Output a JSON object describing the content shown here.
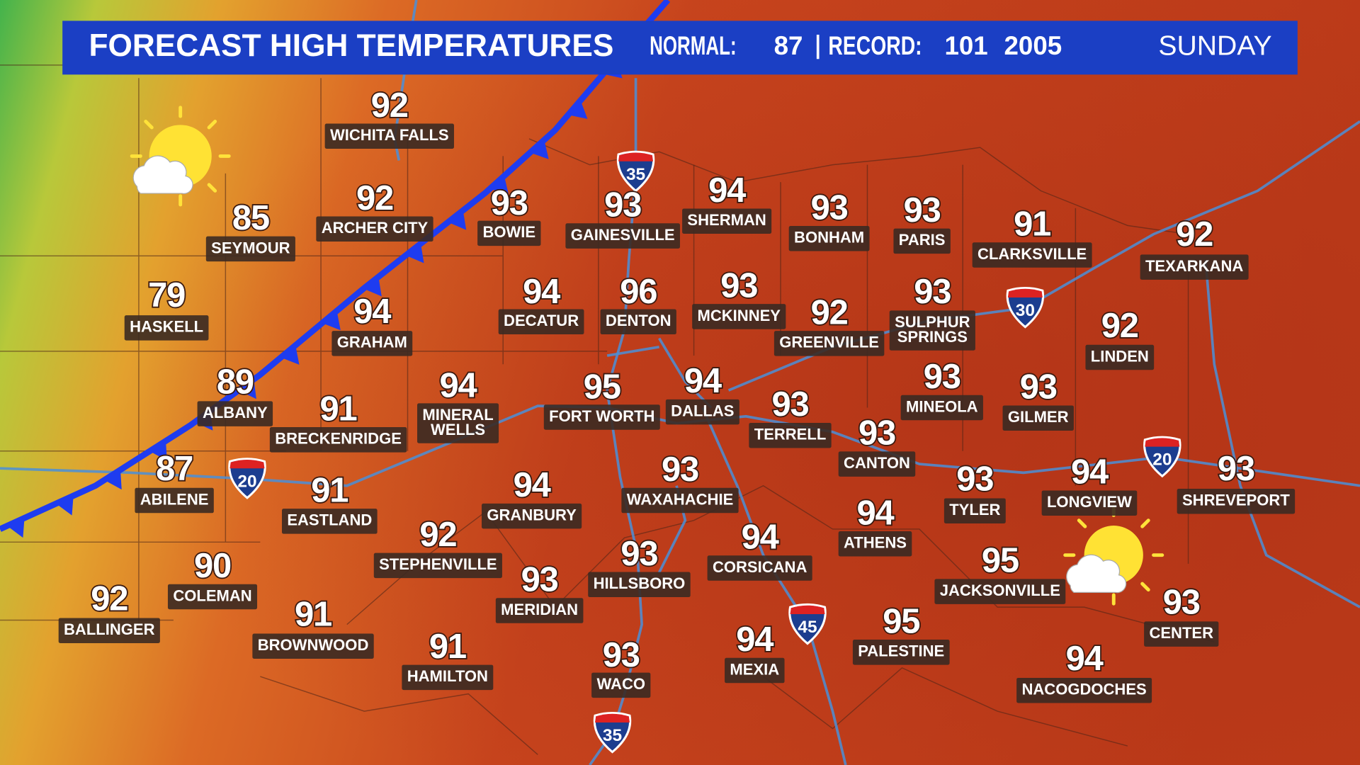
{
  "header": {
    "title": "FORECAST HIGH TEMPERATURES",
    "normal_label": "NORMAL:",
    "normal": 87,
    "record_label": "RECORD:",
    "record": 101,
    "record_year": 2005,
    "day": "SUNDAY"
  },
  "cities": [
    {
      "name": "WICHITA FALLS",
      "high": 92
    },
    {
      "name": "SEYMOUR",
      "high": 85
    },
    {
      "name": "ARCHER CITY",
      "high": 92
    },
    {
      "name": "BOWIE",
      "high": 93
    },
    {
      "name": "GAINESVILLE",
      "high": 93
    },
    {
      "name": "SHERMAN",
      "high": 94
    },
    {
      "name": "BONHAM",
      "high": 93
    },
    {
      "name": "PARIS",
      "high": 93
    },
    {
      "name": "CLARKSVILLE",
      "high": 91
    },
    {
      "name": "TEXARKANA",
      "high": 92
    },
    {
      "name": "HASKELL",
      "high": 79
    },
    {
      "name": "GRAHAM",
      "high": 94
    },
    {
      "name": "DECATUR",
      "high": 94
    },
    {
      "name": "DENTON",
      "high": 96
    },
    {
      "name": "MCKINNEY",
      "high": 93
    },
    {
      "name": "GREENVILLE",
      "high": 92
    },
    {
      "name": [
        "SULPHUR",
        "SPRINGS"
      ],
      "high": 93
    },
    {
      "name": "LINDEN",
      "high": 92
    },
    {
      "name": "ALBANY",
      "high": 89
    },
    {
      "name": "BRECKENRIDGE",
      "high": 91
    },
    {
      "name": [
        "MINERAL",
        "WELLS"
      ],
      "high": 94
    },
    {
      "name": "FORT WORTH",
      "high": 95
    },
    {
      "name": "DALLAS",
      "high": 94
    },
    {
      "name": "TERRELL",
      "high": 93
    },
    {
      "name": "MINEOLA",
      "high": 93
    },
    {
      "name": "GILMER",
      "high": 93
    },
    {
      "name": "CANTON",
      "high": 93
    },
    {
      "name": "ABILENE",
      "high": 87
    },
    {
      "name": "EASTLAND",
      "high": 91
    },
    {
      "name": "GRANBURY",
      "high": 94
    },
    {
      "name": "WAXAHACHIE",
      "high": 93
    },
    {
      "name": "TYLER",
      "high": 93
    },
    {
      "name": "LONGVIEW",
      "high": 94
    },
    {
      "name": "SHREVEPORT",
      "high": 93
    },
    {
      "name": "ATHENS",
      "high": 94
    },
    {
      "name": "STEPHENVILLE",
      "high": 92
    },
    {
      "name": "CORSICANA",
      "high": 94
    },
    {
      "name": "HILLSBORO",
      "high": 93
    },
    {
      "name": "MERIDIAN",
      "high": 93
    },
    {
      "name": "JACKSONVILLE",
      "high": 95
    },
    {
      "name": "COLEMAN",
      "high": 90
    },
    {
      "name": "BALLINGER",
      "high": 92
    },
    {
      "name": "CENTER",
      "high": 93
    },
    {
      "name": "BROWNWOOD",
      "high": 91
    },
    {
      "name": "PALESTINE",
      "high": 95
    },
    {
      "name": "HAMILTON",
      "high": 91
    },
    {
      "name": "MEXIA",
      "high": 94
    },
    {
      "name": "WACO",
      "high": 93
    },
    {
      "name": "NACOGDOCHES",
      "high": 94
    }
  ],
  "interstates": [
    35,
    35,
    20,
    20,
    30,
    45
  ]
}
